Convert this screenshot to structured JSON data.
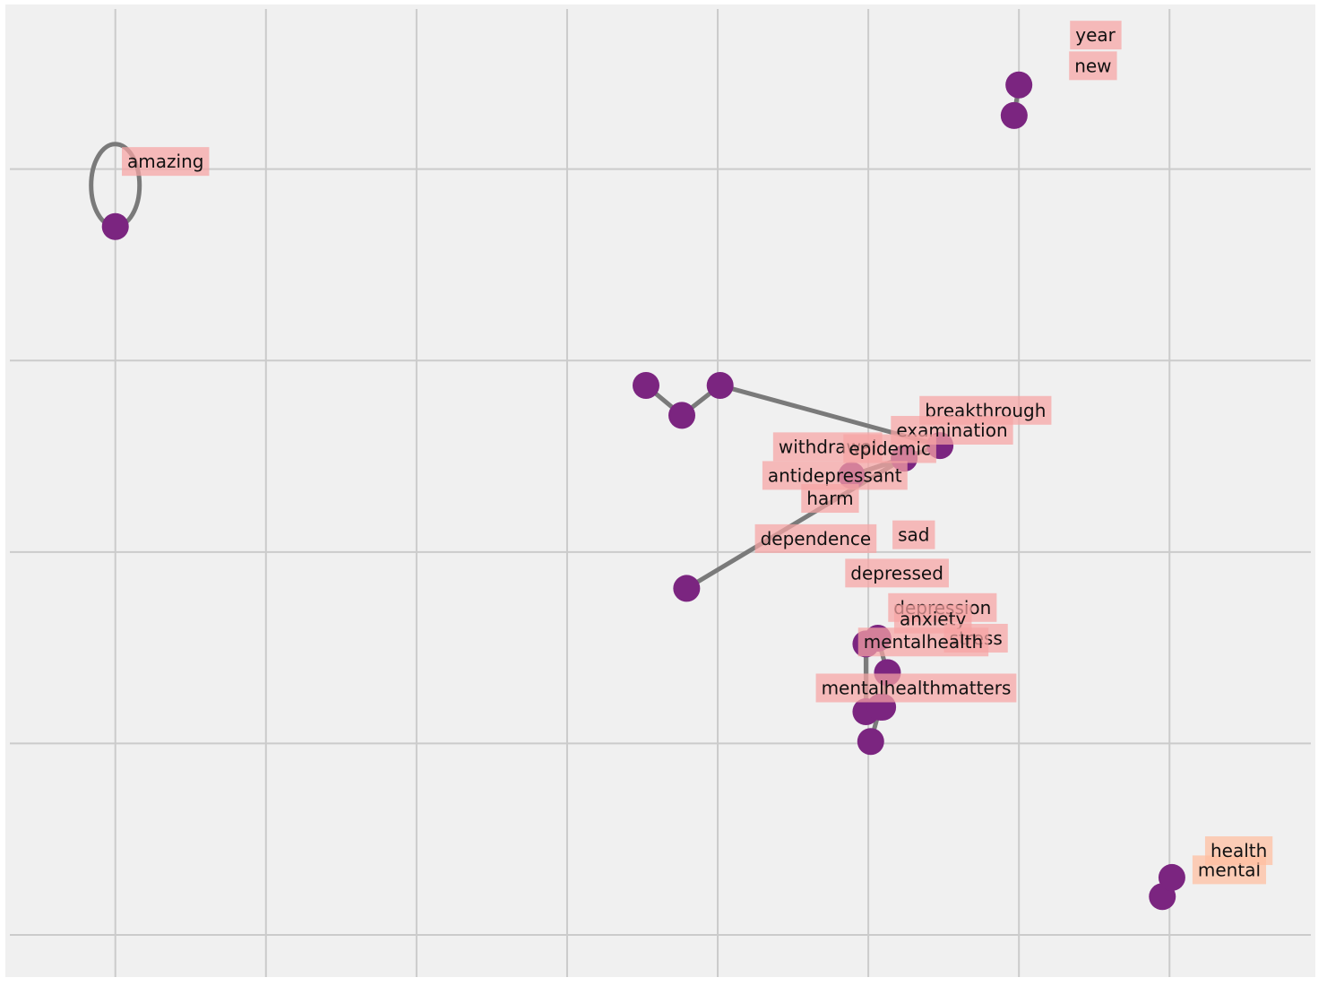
{
  "chart_data": {
    "type": "scatter",
    "subtype": "word-embedding-graph",
    "title": "",
    "xlabel": "",
    "ylabel": "",
    "xlim": [
      -0.78,
      1.96
    ],
    "ylim": [
      -1.36,
      1.18
    ],
    "xticks": [
      -0.55,
      -0.235,
      0.08,
      0.395,
      0.71,
      1.025,
      1.34,
      1.655
    ],
    "yticks": [
      -1.25,
      -0.75,
      -0.25,
      0.25,
      0.75
    ],
    "grid": true,
    "tick_labels_visible": false,
    "colors": {
      "background": "#f0f0f0",
      "grid": "#cbcbcb",
      "node": "#7b2580",
      "edge": "#7a7a7a",
      "label_box": "#f7a3a3",
      "label_box_alt": "#ffbea0"
    },
    "nodes": [
      {
        "label": "amazing",
        "x": -0.55,
        "y": 0.6,
        "label_x": -0.445,
        "label_y": 0.77
      },
      {
        "label": "year",
        "x": 1.34,
        "y": 0.97,
        "label_x": 1.5,
        "label_y": 1.1
      },
      {
        "label": "new",
        "x": 1.33,
        "y": 0.89,
        "label_x": 1.495,
        "label_y": 1.02
      },
      {
        "label": "breakthrough",
        "x": 0.56,
        "y": 0.185,
        "label_x": 1.27,
        "label_y": 0.12
      },
      {
        "label": "examination",
        "x": 0.635,
        "y": 0.107,
        "label_x": 1.2,
        "label_y": 0.068
      },
      {
        "label": "withdrawal",
        "x": 0.715,
        "y": 0.185,
        "label_x": 0.94,
        "label_y": 0.025
      },
      {
        "label": "epidemic",
        "x": 1.175,
        "y": 0.028,
        "label_x": 1.07,
        "label_y": 0.02
      },
      {
        "label": "antidepressant",
        "x": 0.99,
        "y": -0.05,
        "label_x": 0.955,
        "label_y": -0.05
      },
      {
        "label": "harm",
        "x": 1.1,
        "y": -0.005,
        "label_x": 0.945,
        "label_y": -0.11
      },
      {
        "label": "dependence",
        "x": 0.645,
        "y": -0.345,
        "label_x": 0.915,
        "label_y": -0.215
      },
      {
        "label": "sad",
        "x": 1.045,
        "y": -0.475,
        "label_x": 1.12,
        "label_y": -0.205
      },
      {
        "label": "depressed",
        "x": 1.065,
        "y": -0.565,
        "label_x": 1.085,
        "label_y": -0.305
      },
      {
        "label": "depression",
        "x": 1.055,
        "y": -0.655,
        "label_x": 1.18,
        "label_y": -0.395
      },
      {
        "label": "anxiety",
        "x": 1.02,
        "y": -0.667,
        "label_x": 1.16,
        "label_y": -0.425
      },
      {
        "label": "stress",
        "x": 1.02,
        "y": -0.49,
        "label_x": 1.25,
        "label_y": -0.475
      },
      {
        "label": "mentalhealth",
        "x": 1.05,
        "y": -0.655,
        "label_x": 1.14,
        "label_y": -0.485
      },
      {
        "label": "mentalhealthmatters",
        "x": 1.03,
        "y": -0.745,
        "label_x": 1.125,
        "label_y": -0.605
      },
      {
        "label": "mental",
        "x": 1.64,
        "y": -1.15,
        "label_x": 1.78,
        "label_y": -1.08
      },
      {
        "label": "health",
        "x": 1.66,
        "y": -1.1,
        "label_x": 1.8,
        "label_y": -1.03
      }
    ],
    "edges": [
      [
        "year",
        "new"
      ],
      [
        "mental",
        "health"
      ],
      [
        "breakthrough",
        "examination"
      ],
      [
        "examination",
        "withdrawal"
      ],
      [
        "withdrawal",
        "epidemic"
      ],
      [
        "epidemic",
        "antidepressant"
      ],
      [
        "antidepressant",
        "harm"
      ],
      [
        "dependence",
        "harm"
      ],
      [
        "sad",
        "depressed"
      ],
      [
        "depressed",
        "depression"
      ],
      [
        "depression",
        "anxiety"
      ],
      [
        "depression",
        "mentalhealth"
      ],
      [
        "anxiety",
        "stress"
      ],
      [
        "mentalhealth",
        "mentalhealthmatters"
      ]
    ],
    "self_loops": [
      "amazing"
    ]
  }
}
